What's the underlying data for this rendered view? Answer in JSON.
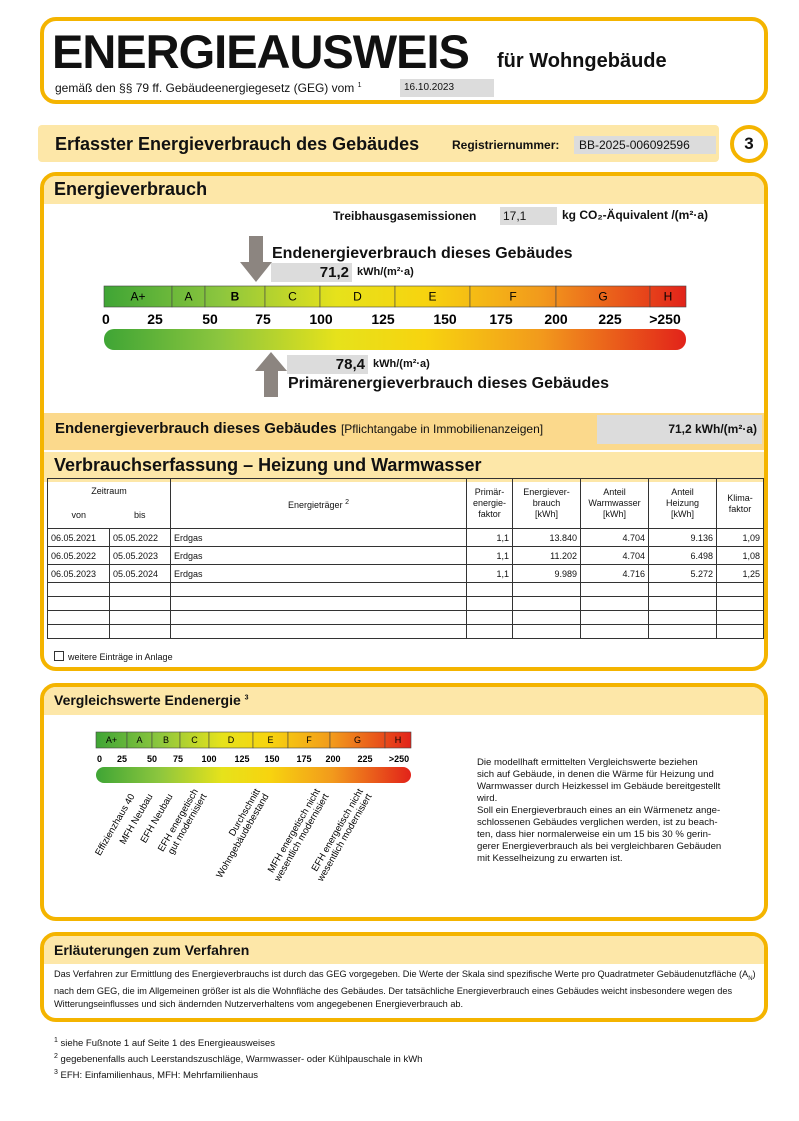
{
  "header": {
    "title": "ENERGIEAUSWEIS",
    "subtitle": "für Wohngebäude",
    "legal_basis": "gemäß den §§ 79 ff. Gebäudeenergiegesetz (GEG) vom",
    "footnote_mark": "1",
    "date": "16.10.2023"
  },
  "section": {
    "title": "Erfasster Energieverbrauch des Gebäudes",
    "registration_label": "Registriernummer:",
    "registration_number": "BB-2025-006092596",
    "page_number": "3"
  },
  "energy": {
    "title": "Energieverbrauch",
    "emissions_label": "Treibhausgasemissionen",
    "emissions_value": "17,1",
    "emissions_unit": "kg CO₂-Äquivalent /(m²·a)",
    "final_label": "Endenergieverbrauch dieses Gebäudes",
    "final_value": "71,2",
    "final_unit": "kWh/(m²·a)",
    "primary_value": "78,4",
    "primary_unit": "kWh/(m²·a)",
    "primary_label": "Primärenergieverbrauch dieses Gebäudes",
    "classes": [
      "A+",
      "A",
      "B",
      "C",
      "D",
      "E",
      "F",
      "G",
      "H"
    ],
    "scale_labels": [
      "0",
      "25",
      "50",
      "75",
      "100",
      "125",
      "150",
      "175",
      "200",
      "225",
      ">250"
    ]
  },
  "notice": {
    "label": "Endenergieverbrauch dieses Gebäudes",
    "note": "[Pflichtangabe in Immobilienanzeigen]",
    "value": "71,2 kWh/(m²·a)"
  },
  "consumption": {
    "title": "Verbrauchserfassung – Heizung und Warmwasser",
    "headers": {
      "period": "Zeitraum",
      "from": "von",
      "to": "bis",
      "carrier": "Energieträger",
      "carrier_footnote": "2",
      "primary_factor": "Primär-\nenergie-\nfaktor",
      "consumption": "Energiever-\nbrauch\n[kWh]",
      "hot_water": "Anteil\nWarmwasser\n[kWh]",
      "heating": "Anteil\nHeizung\n[kWh]",
      "climate_factor": "Klima-\nfaktor"
    },
    "rows": [
      [
        "06.05.2021",
        "05.05.2022",
        "Erdgas",
        "1,1",
        "13.840",
        "4.704",
        "9.136",
        "1,09"
      ],
      [
        "06.05.2022",
        "05.05.2023",
        "Erdgas",
        "1,1",
        "11.202",
        "4.704",
        "6.498",
        "1,08"
      ],
      [
        "06.05.2023",
        "05.05.2024",
        "Erdgas",
        "1,1",
        "9.989",
        "4.716",
        "5.272",
        "1,25"
      ]
    ],
    "more_entries": "weitere Einträge in Anlage"
  },
  "comparison": {
    "title": "Vergleichswerte Endenergie",
    "footnote_mark": "3",
    "classes": [
      "A+",
      "A",
      "B",
      "C",
      "D",
      "E",
      "F",
      "G",
      "H"
    ],
    "scale_labels": [
      "0",
      "25",
      "50",
      "75",
      "100",
      "125",
      "150",
      "175",
      "200",
      "225",
      ">250"
    ],
    "benchmarks": [
      [
        "Effizienzhaus 40"
      ],
      [
        "MFH Neubau"
      ],
      [
        "EFH Neubau"
      ],
      [
        "EFH energetisch",
        "gut modernisiert"
      ],
      [
        "Durchschnitt",
        "Wohngebäudebestand"
      ],
      [
        "MFH energetisch nicht",
        "wesentlich modernisiert"
      ],
      [
        "EFH energetisch nicht",
        "wesentlich modernisiert"
      ]
    ],
    "description": "Die modellhaft ermittelten Vergleichswerte beziehen\nsich auf Gebäude, in denen die Wärme für Heizung und\nWarmwasser durch Heizkessel im Gebäude bereitgestellt\nwird.\nSoll ein Energieverbrauch eines an ein Wärmenetz ange-\nschlossenen Gebäudes verglichen werden, ist zu beach-\nten, dass hier normalerweise ein um 15 bis 30 % gerin-\ngerer Energieverbrauch als bei vergleichbaren Gebäuden\nmit Kesselheizung zu erwarten ist."
  },
  "explanation": {
    "title": "Erläuterungen zum Verfahren",
    "text_before": "Das Verfahren zur Ermittlung des Energieverbrauchs ist durch das GEG vorgegeben. Die Werte der Skala sind spezifische Werte pro Quadratmeter Gebäudenutzfläche (A",
    "subscript": "N",
    "text_after": ") nach dem GEG, die im Allgemeinen größer ist als die Wohnfläche des Gebäudes. Der tatsächliche Energieverbrauch eines Gebäudes weicht insbesondere wegen des Witterungseinflusses und sich ändernden Nutzerverhaltens vom angegebenen Energieverbrauch ab."
  },
  "footnotes": [
    {
      "mark": "1",
      "text": "siehe Fußnote 1 auf Seite 1 des Energieausweises"
    },
    {
      "mark": "2",
      "text": "gegebenenfalls auch Leerstandszuschläge, Warmwasser- oder Kühlpauschale in kWh"
    },
    {
      "mark": "3",
      "text": "EFH: Einfamilienhaus, MFH: Mehrfamilienhaus"
    }
  ]
}
